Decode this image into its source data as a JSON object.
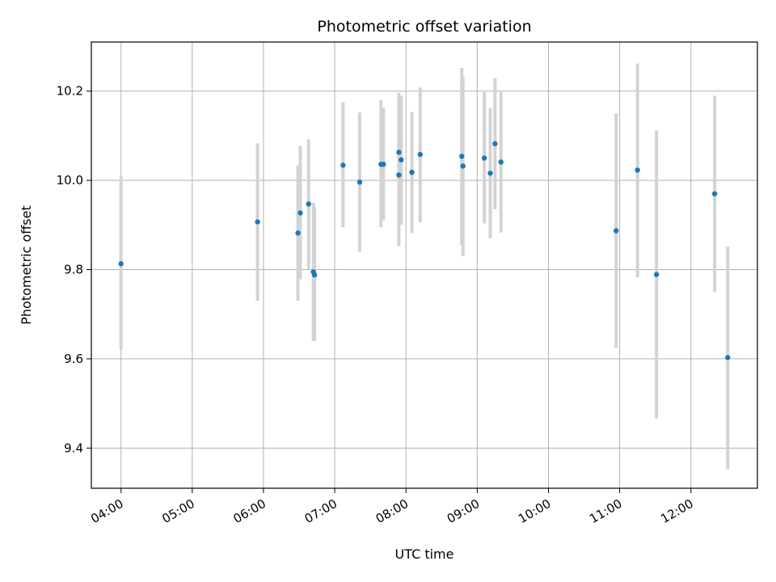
{
  "chart_data": {
    "type": "scatter",
    "title": "Photometric offset variation",
    "xlabel": "UTC time",
    "ylabel": "Photometric offset",
    "x_tick_labels": [
      "04:00",
      "05:00",
      "06:00",
      "07:00",
      "08:00",
      "09:00",
      "10:00",
      "11:00",
      "12:00"
    ],
    "y_tick_labels": [
      "9.4",
      "9.6",
      "9.8",
      "10.0",
      "10.2"
    ],
    "xlim": [
      "03:35",
      "12:56"
    ],
    "ylim": [
      9.31,
      10.31
    ],
    "grid": true,
    "point_color": "#1f77b4",
    "errorbar_color": "#d3d3d3",
    "points": [
      {
        "x": "04:00",
        "y": 9.813,
        "lo": 9.62,
        "hi": 10.01
      },
      {
        "x": "05:55",
        "y": 9.907,
        "lo": 9.73,
        "hi": 10.083
      },
      {
        "x": "06:29",
        "y": 9.882,
        "lo": 9.73,
        "hi": 10.033
      },
      {
        "x": "06:31",
        "y": 9.927,
        "lo": 9.778,
        "hi": 10.077
      },
      {
        "x": "06:38",
        "y": 9.947,
        "lo": 9.8,
        "hi": 10.092
      },
      {
        "x": "06:42",
        "y": 9.795,
        "lo": 9.64,
        "hi": 9.95
      },
      {
        "x": "06:43",
        "y": 9.788,
        "lo": 9.64,
        "hi": 9.94
      },
      {
        "x": "07:07",
        "y": 10.034,
        "lo": 9.895,
        "hi": 10.175
      },
      {
        "x": "07:21",
        "y": 9.996,
        "lo": 9.84,
        "hi": 10.152
      },
      {
        "x": "07:39",
        "y": 10.036,
        "lo": 9.895,
        "hi": 10.18
      },
      {
        "x": "07:41",
        "y": 10.036,
        "lo": 9.91,
        "hi": 10.163
      },
      {
        "x": "07:54",
        "y": 10.012,
        "lo": 9.853,
        "hi": 10.172
      },
      {
        "x": "07:54",
        "y": 10.063,
        "lo": 9.93,
        "hi": 10.196
      },
      {
        "x": "07:56",
        "y": 10.046,
        "lo": 9.9,
        "hi": 10.19
      },
      {
        "x": "08:05",
        "y": 10.018,
        "lo": 9.882,
        "hi": 10.153
      },
      {
        "x": "08:12",
        "y": 10.058,
        "lo": 9.906,
        "hi": 10.208
      },
      {
        "x": "08:47",
        "y": 10.054,
        "lo": 9.855,
        "hi": 10.252
      },
      {
        "x": "08:48",
        "y": 10.032,
        "lo": 9.83,
        "hi": 10.232
      },
      {
        "x": "09:06",
        "y": 10.05,
        "lo": 9.903,
        "hi": 10.198
      },
      {
        "x": "09:11",
        "y": 10.016,
        "lo": 9.87,
        "hi": 10.162
      },
      {
        "x": "09:15",
        "y": 10.082,
        "lo": 9.935,
        "hi": 10.229
      },
      {
        "x": "09:20",
        "y": 10.041,
        "lo": 9.883,
        "hi": 10.198
      },
      {
        "x": "10:57",
        "y": 9.887,
        "lo": 9.624,
        "hi": 10.15
      },
      {
        "x": "11:15",
        "y": 10.023,
        "lo": 9.783,
        "hi": 10.262
      },
      {
        "x": "11:31",
        "y": 9.789,
        "lo": 9.466,
        "hi": 10.112
      },
      {
        "x": "12:20",
        "y": 9.97,
        "lo": 9.75,
        "hi": 10.19
      },
      {
        "x": "12:31",
        "y": 9.603,
        "lo": 9.353,
        "hi": 9.852
      }
    ]
  }
}
